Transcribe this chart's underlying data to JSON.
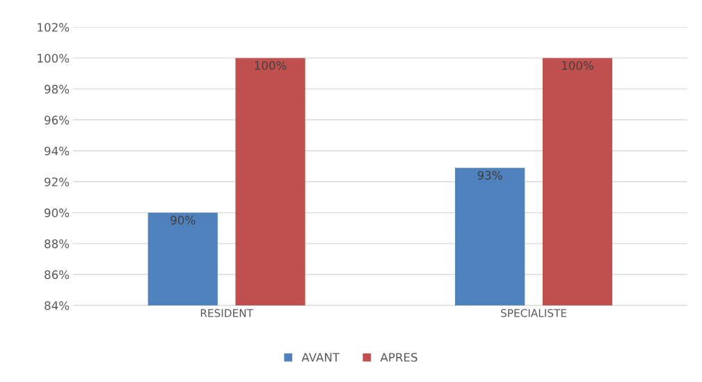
{
  "chart_data": {
    "type": "bar",
    "categories": [
      "RESIDENT",
      "SPECIALISTE"
    ],
    "series": [
      {
        "name": "AVANT",
        "color": "#4f81bd",
        "values": [
          90,
          92.9
        ],
        "value_labels": [
          "90%",
          "93%"
        ]
      },
      {
        "name": "APRES",
        "color": "#c0504d",
        "values": [
          100,
          100
        ],
        "value_labels": [
          "100%",
          "100%"
        ]
      }
    ],
    "ylim": [
      84,
      102
    ],
    "yticks": [
      {
        "value": 84,
        "label": "84%"
      },
      {
        "value": 86,
        "label": "86%"
      },
      {
        "value": 88,
        "label": "88%"
      },
      {
        "value": 90,
        "label": "90%"
      },
      {
        "value": 92,
        "label": "92%"
      },
      {
        "value": 94,
        "label": "94%"
      },
      {
        "value": 96,
        "label": "96%"
      },
      {
        "value": 98,
        "label": "98%"
      },
      {
        "value": 100,
        "label": "100%"
      },
      {
        "value": 102,
        "label": "102%"
      }
    ],
    "grid": "y",
    "legend": "bottom"
  }
}
